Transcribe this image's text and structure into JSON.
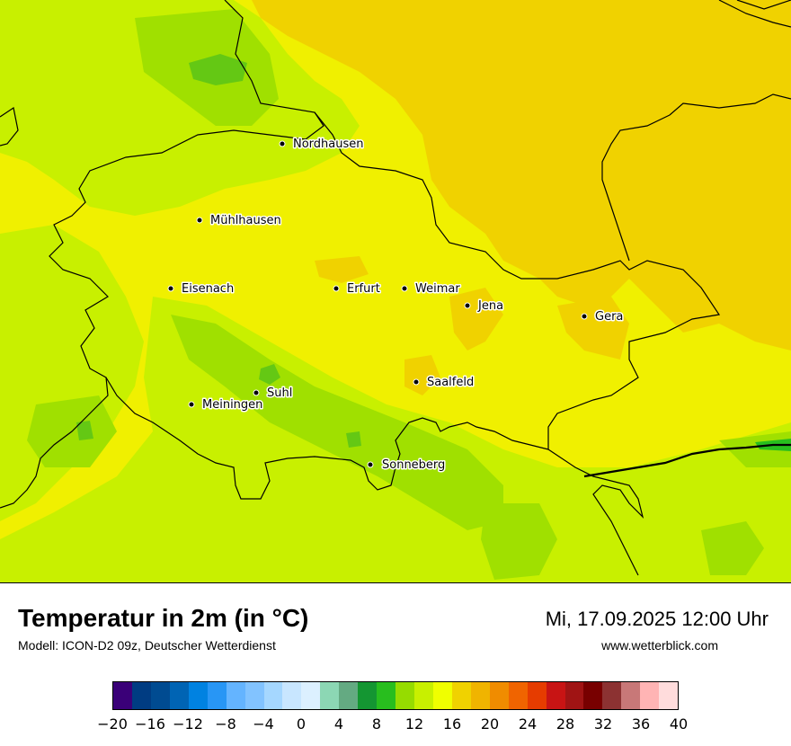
{
  "map": {
    "region": "Thüringen",
    "background_color": "#f0f000",
    "cities": [
      {
        "name": "Nordhausen"
      },
      {
        "name": "Mühlhausen"
      },
      {
        "name": "Eisenach"
      },
      {
        "name": "Erfurt"
      },
      {
        "name": "Weimar"
      },
      {
        "name": "Jena"
      },
      {
        "name": "Gera"
      },
      {
        "name": "Saalfeld"
      },
      {
        "name": "Suhl"
      },
      {
        "name": "Meiningen"
      },
      {
        "name": "Sonneberg"
      }
    ]
  },
  "header": {
    "title": "Temperatur in 2m (in °C)",
    "model": "Modell: ICON-D2 09z, Deutscher Wetterdienst",
    "datetime": "Mi, 17.09.2025 12:00 Uhr",
    "website": "www.wetterblick.com"
  },
  "legend": {
    "colors": [
      "#3a0078",
      "#003c82",
      "#004b91",
      "#0064b4",
      "#0082e1",
      "#2896f5",
      "#64b4ff",
      "#82c3ff",
      "#a5d7ff",
      "#c8e6ff",
      "#dcf0ff",
      "#8cd7b4",
      "#64aa82",
      "#149632",
      "#28be1e",
      "#96dc00",
      "#c8f000",
      "#f0ff00",
      "#f0d200",
      "#f0b400",
      "#f08c00",
      "#f06400",
      "#e63c00",
      "#c81414",
      "#a01414",
      "#780000",
      "#8c3232",
      "#c87878",
      "#ffb4b4",
      "#ffdcdc"
    ],
    "tick_labels": [
      "−20",
      "−16",
      "−12",
      "−8",
      "−4",
      "0",
      "4",
      "8",
      "12",
      "16",
      "20",
      "24",
      "28",
      "32",
      "36",
      "40"
    ],
    "min": -20,
    "max": 40
  }
}
